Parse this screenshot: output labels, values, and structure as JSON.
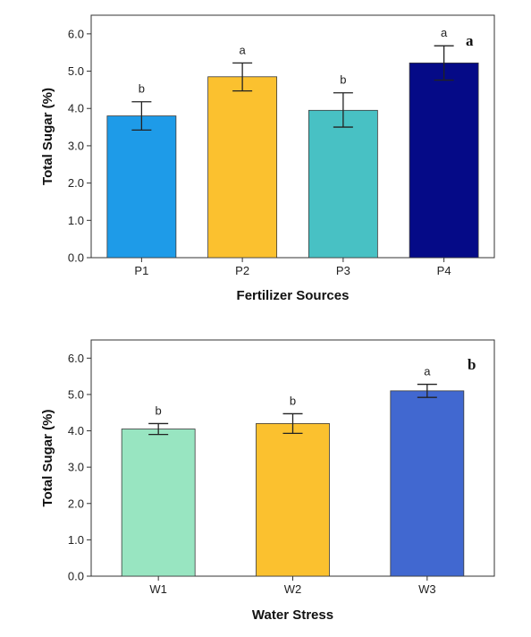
{
  "chart_data": [
    {
      "type": "bar",
      "panel_label": "a",
      "categories": [
        "P1",
        "P2",
        "P3",
        "P4"
      ],
      "values": [
        3.8,
        4.85,
        3.95,
        5.22
      ],
      "error": [
        [
          3.42,
          4.18
        ],
        [
          4.47,
          5.22
        ],
        [
          3.5,
          4.42
        ],
        [
          4.76,
          5.68
        ]
      ],
      "significance": [
        "b",
        "a",
        "b",
        "a"
      ],
      "colors": [
        "#1e9be8",
        "#fbc12f",
        "#48c1c4",
        "#050a87"
      ],
      "xlabel": "Fertilizer Sources",
      "ylabel": "Total Sugar (%)",
      "ylim": [
        0,
        6.5
      ],
      "yticks": [
        "0.0",
        "1.0",
        "2.0",
        "3.0",
        "4.0",
        "5.0",
        "6.0"
      ],
      "grid": false
    },
    {
      "type": "bar",
      "panel_label": "b",
      "categories": [
        "W1",
        "W2",
        "W3"
      ],
      "values": [
        4.05,
        4.2,
        5.1
      ],
      "error": [
        [
          3.9,
          4.2
        ],
        [
          3.93,
          4.47
        ],
        [
          4.92,
          5.28
        ]
      ],
      "significance": [
        "b",
        "b",
        "a"
      ],
      "colors": [
        "#98e5c1",
        "#fbc12f",
        "#4168d0"
      ],
      "xlabel": "Water Stress",
      "ylabel": "Total Sugar (%)",
      "ylim": [
        0,
        6.5
      ],
      "yticks": [
        "0.0",
        "1.0",
        "2.0",
        "3.0",
        "4.0",
        "5.0",
        "6.0"
      ],
      "grid": false
    }
  ]
}
